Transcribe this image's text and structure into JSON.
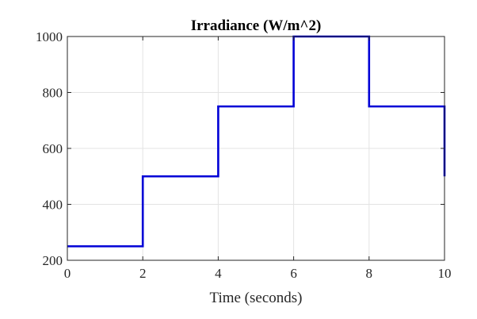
{
  "chart_data": {
    "type": "line",
    "title": "Irradiance (W/m^2)",
    "xlabel": "Time (seconds)",
    "ylabel": "",
    "xlim": [
      0,
      10
    ],
    "ylim": [
      200,
      1000
    ],
    "xticks": [
      0,
      2,
      4,
      6,
      8,
      10
    ],
    "yticks": [
      200,
      400,
      600,
      800,
      1000
    ],
    "xtick_labels": [
      "0",
      "2",
      "4",
      "6",
      "8",
      "10"
    ],
    "ytick_labels": [
      "200",
      "400",
      "600",
      "800",
      "1000"
    ],
    "grid": true,
    "series": [
      {
        "color": "#0000d6",
        "x": [
          0,
          2,
          2,
          4,
          4,
          6,
          6,
          8,
          8,
          10,
          10
        ],
        "y": [
          250,
          250,
          500,
          500,
          750,
          750,
          1000,
          1000,
          750,
          750,
          500
        ]
      }
    ]
  }
}
